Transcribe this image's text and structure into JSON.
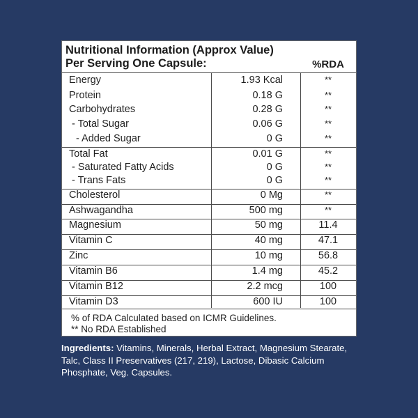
{
  "panel": {
    "title_line1": "Nutritional Information (Approx Value)",
    "title_line2": "Per Serving One Capsule:",
    "rda_header": "%RDA"
  },
  "rows": [
    {
      "name": "Energy",
      "amount": "1.93 Kcal",
      "rda": "**"
    },
    {
      "name": "Protein",
      "amount": "0.18 G",
      "rda": "**"
    },
    {
      "name": "Carbohydrates",
      "amount": "0.28 G",
      "rda": "**"
    },
    {
      "name": "- Total Sugar",
      "amount": "0.06 G",
      "rda": "**"
    },
    {
      "name": "- Added Sugar",
      "amount": "0 G",
      "rda": "**"
    },
    {
      "name": "Total Fat",
      "amount": "0.01 G",
      "rda": "**"
    },
    {
      "name": "- Saturated Fatty Acids",
      "amount": "0 G",
      "rda": "**"
    },
    {
      "name": "- Trans Fats",
      "amount": "0 G",
      "rda": "**"
    },
    {
      "name": "Cholesterol",
      "amount": "0 Mg",
      "rda": "**"
    },
    {
      "name": "Ashwagandha",
      "amount": "500 mg",
      "rda": "**"
    },
    {
      "name": "Magnesium",
      "amount": "50 mg",
      "rda": "11.4"
    },
    {
      "name": "Vitamin C",
      "amount": "40 mg",
      "rda": "47.1"
    },
    {
      "name": "Zinc",
      "amount": "10 mg",
      "rda": "56.8"
    },
    {
      "name": "Vitamin B6",
      "amount": "1.4 mg",
      "rda": "45.2"
    },
    {
      "name": "Vitamin B12",
      "amount": "2.2 mcg",
      "rda": "100"
    },
    {
      "name": "Vitamin D3",
      "amount": "600 IU",
      "rda": "100"
    }
  ],
  "notes": {
    "line1": "% of RDA Calculated based on ICMR Guidelines.",
    "line2": "** No RDA Established"
  },
  "ingredients": {
    "label": "Ingredients:",
    "text": " Vitamins, Minerals, Herbal Extract, Magnesium Stearate, Talc, Class II Preservatives (217, 219), Lactose, Dibasic Calcium Phosphate, Veg. Capsules."
  },
  "colors": {
    "background": "#263a64",
    "panel": "#ffffff",
    "text": "#1f1f1f",
    "ingredients_text": "#ffffff"
  }
}
